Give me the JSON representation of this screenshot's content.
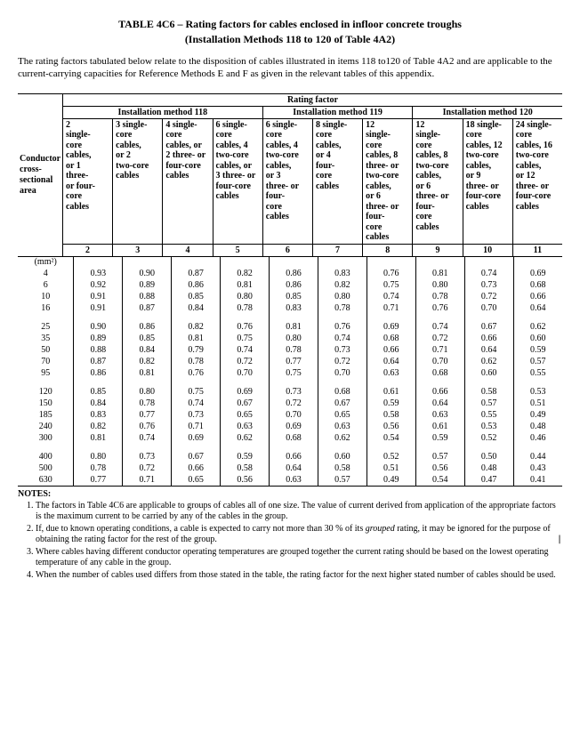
{
  "title": "TABLE 4C6 – Rating factors for cables enclosed in infloor concrete troughs",
  "subtitle": "(Installation Methods 118 to 120 of Table 4A2)",
  "intro": "The rating factors tabulated below relate to the disposition of cables illustrated in items 118 to120 of Table 4A2 and are applicable to the current-carrying capacities for Reference Methods E and F as given in the relevant tables of this appendix.",
  "side_header": "Conductor cross-sectional area",
  "rating_factor_label": "Rating factor",
  "methods": {
    "m118": "Installation method 118",
    "m119": "Installation method 119",
    "m120": "Installation method 120"
  },
  "col_headers": {
    "c2": "2 single-core cables, or 1 three- or four-core cables",
    "c3": "3 single-core cables, or 2 two-core cables",
    "c4": "4 single-core cables, or 2 three- or four-core cables",
    "c5": "6 single-core cables, 4 two-core cables, or 3 three- or four-core cables",
    "c6": "6 single-core cables, 4 two-core cables, or 3 three- or four-core cables",
    "c7": "8 single-core cables, or 4 four-core cables",
    "c8": "12 single-core cables, 8 three- or two-core cables, or 6 three- or four-core cables",
    "c9": "12 single-core cables, 8 two-core cables, or 6 three- or four-core cables",
    "c10": "18 single-core cables, 12 two-core cables, or 9 three- or four-core cables",
    "c11": "24 single-core cables, 16 two-core cables, or 12 three- or four-core cables"
  },
  "col_numbers": [
    "1",
    "2",
    "3",
    "4",
    "5",
    "6",
    "7",
    "8",
    "9",
    "10",
    "11"
  ],
  "unit": "(mm²)",
  "rows": [
    {
      "size": "4",
      "v": [
        "0.93",
        "0.90",
        "0.87",
        "0.82",
        "0.86",
        "0.83",
        "0.76",
        "0.81",
        "0.74",
        "0.69"
      ]
    },
    {
      "size": "6",
      "v": [
        "0.92",
        "0.89",
        "0.86",
        "0.81",
        "0.86",
        "0.82",
        "0.75",
        "0.80",
        "0.73",
        "0.68"
      ]
    },
    {
      "size": "10",
      "v": [
        "0.91",
        "0.88",
        "0.85",
        "0.80",
        "0.85",
        "0.80",
        "0.74",
        "0.78",
        "0.72",
        "0.66"
      ]
    },
    {
      "size": "16",
      "v": [
        "0.91",
        "0.87",
        "0.84",
        "0.78",
        "0.83",
        "0.78",
        "0.71",
        "0.76",
        "0.70",
        "0.64"
      ]
    },
    {
      "size": "",
      "v": [
        "",
        "",
        "",
        "",
        "",
        "",
        "",
        "",
        "",
        ""
      ],
      "spacer": true
    },
    {
      "size": "25",
      "v": [
        "0.90",
        "0.86",
        "0.82",
        "0.76",
        "0.81",
        "0.76",
        "0.69",
        "0.74",
        "0.67",
        "0.62"
      ]
    },
    {
      "size": "35",
      "v": [
        "0.89",
        "0.85",
        "0.81",
        "0.75",
        "0.80",
        "0.74",
        "0.68",
        "0.72",
        "0.66",
        "0.60"
      ]
    },
    {
      "size": "50",
      "v": [
        "0.88",
        "0.84",
        "0.79",
        "0.74",
        "0.78",
        "0.73",
        "0.66",
        "0.71",
        "0.64",
        "0.59"
      ]
    },
    {
      "size": "70",
      "v": [
        "0.87",
        "0.82",
        "0.78",
        "0.72",
        "0.77",
        "0.72",
        "0.64",
        "0.70",
        "0.62",
        "0.57"
      ]
    },
    {
      "size": "95",
      "v": [
        "0.86",
        "0.81",
        "0.76",
        "0.70",
        "0.75",
        "0.70",
        "0.63",
        "0.68",
        "0.60",
        "0.55"
      ]
    },
    {
      "size": "",
      "v": [
        "",
        "",
        "",
        "",
        "",
        "",
        "",
        "",
        "",
        ""
      ],
      "spacer": true
    },
    {
      "size": "120",
      "v": [
        "0.85",
        "0.80",
        "0.75",
        "0.69",
        "0.73",
        "0.68",
        "0.61",
        "0.66",
        "0.58",
        "0.53"
      ]
    },
    {
      "size": "150",
      "v": [
        "0.84",
        "0.78",
        "0.74",
        "0.67",
        "0.72",
        "0.67",
        "0.59",
        "0.64",
        "0.57",
        "0.51"
      ]
    },
    {
      "size": "185",
      "v": [
        "0.83",
        "0.77",
        "0.73",
        "0.65",
        "0.70",
        "0.65",
        "0.58",
        "0.63",
        "0.55",
        "0.49"
      ]
    },
    {
      "size": "240",
      "v": [
        "0.82",
        "0.76",
        "0.71",
        "0.63",
        "0.69",
        "0.63",
        "0.56",
        "0.61",
        "0.53",
        "0.48"
      ]
    },
    {
      "size": "300",
      "v": [
        "0.81",
        "0.74",
        "0.69",
        "0.62",
        "0.68",
        "0.62",
        "0.54",
        "0.59",
        "0.52",
        "0.46"
      ]
    },
    {
      "size": "",
      "v": [
        "",
        "",
        "",
        "",
        "",
        "",
        "",
        "",
        "",
        ""
      ],
      "spacer": true
    },
    {
      "size": "400",
      "v": [
        "0.80",
        "0.73",
        "0.67",
        "0.59",
        "0.66",
        "0.60",
        "0.52",
        "0.57",
        "0.50",
        "0.44"
      ]
    },
    {
      "size": "500",
      "v": [
        "0.78",
        "0.72",
        "0.66",
        "0.58",
        "0.64",
        "0.58",
        "0.51",
        "0.56",
        "0.48",
        "0.43"
      ]
    },
    {
      "size": "630",
      "v": [
        "0.77",
        "0.71",
        "0.65",
        "0.56",
        "0.63",
        "0.57",
        "0.49",
        "0.54",
        "0.47",
        "0.41"
      ]
    }
  ],
  "notes_label": "NOTES:",
  "notes": [
    "The factors in Table 4C6 are applicable to groups of cables all of one size. The value of current derived from application of the appropriate factors is the maximum current to be carried by any of the cables in the group.",
    "If, due to known operating conditions, a cable is expected to carry not more than 30 % of its grouped rating, it may be ignored for the purpose of obtaining the rating factor for the rest of the group.",
    "Where cables having different conductor operating temperatures are grouped together the current rating should be based on the lowest operating temperature of any cable in the group.",
    "When the number of cables used differs from those stated in the table, the rating factor for the next higher stated number of cables should be used."
  ]
}
